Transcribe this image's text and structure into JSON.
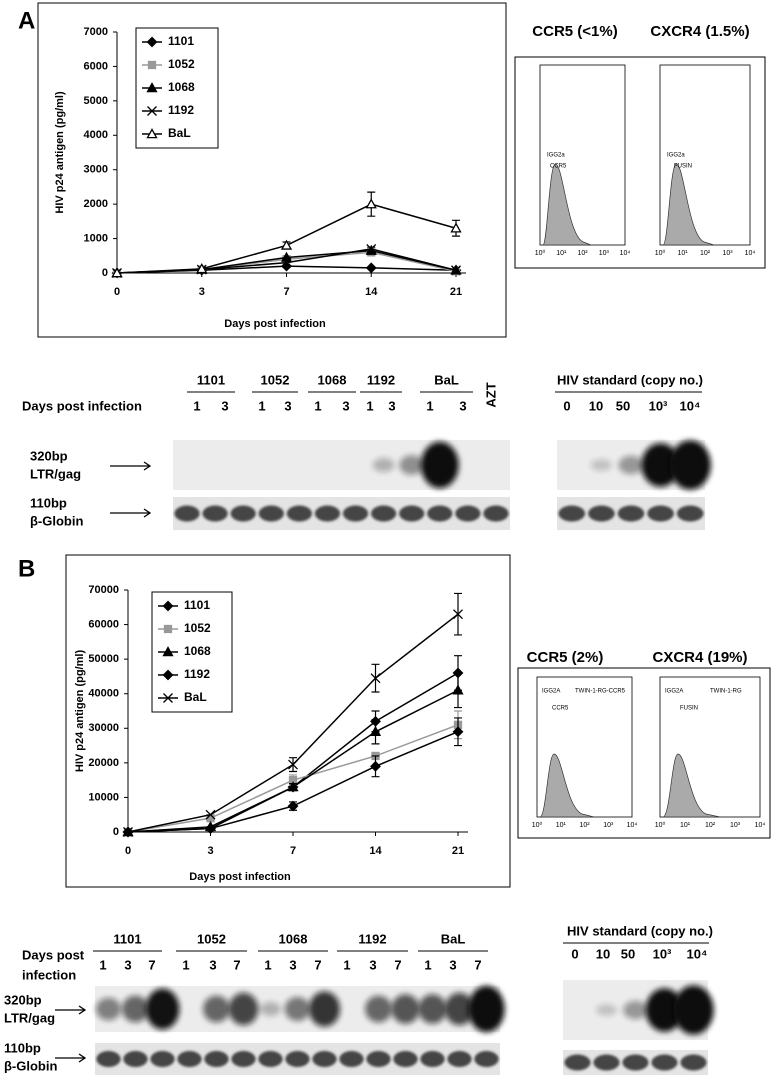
{
  "figure": {
    "panels": [
      {
        "label": "A",
        "flow": {
          "titles": [
            "CCR5 (<1%)",
            "CXCR4 (1.5%)"
          ],
          "plots": [
            {
              "labels": [
                "IGG2a",
                "CCR5"
              ]
            },
            {
              "labels": [
                "IGG2a",
                "FUSIN"
              ]
            }
          ],
          "axis_ticks": [
            "10⁰",
            "10¹",
            "10²",
            "10³",
            "10⁴"
          ]
        },
        "gel": {
          "row_label": [
            "Days post infection"
          ],
          "groups": [
            {
              "name": "1101",
              "days": [
                "1",
                "3"
              ]
            },
            {
              "name": "1052",
              "days": [
                "1",
                "3"
              ]
            },
            {
              "name": "1068",
              "days": [
                "1",
                "3"
              ]
            },
            {
              "name": "1192",
              "days": [
                "1",
                "3"
              ]
            },
            {
              "name": "BaL",
              "days": [
                "1",
                "3"
              ]
            },
            {
              "name": "AZT",
              "days": []
            }
          ],
          "bands": [
            {
              "size": "320bp",
              "name": "LTR/gag"
            },
            {
              "size": "110bp",
              "name": "β-Globin"
            }
          ],
          "standard": {
            "title": "HIV standard (copy no.)",
            "copies": [
              "0",
              "10",
              "50",
              "10³",
              "10⁴"
            ]
          }
        }
      },
      {
        "label": "B",
        "flow": {
          "titles": [
            "CCR5 (2%)",
            "CXCR4 (19%)"
          ],
          "plots": [
            {
              "labels": [
                "IGG2A",
                "TWIN-1-RG-CCR5",
                "CCR5"
              ]
            },
            {
              "labels": [
                "IGG2A",
                "TWIN-1-RG",
                "FUSIN"
              ]
            }
          ],
          "axis_ticks": [
            "10⁰",
            "10¹",
            "10²",
            "10³",
            "10⁴"
          ]
        },
        "gel": {
          "row_label": [
            "Days post",
            "infection"
          ],
          "groups": [
            {
              "name": "1101",
              "days": [
                "1",
                "3",
                "7"
              ]
            },
            {
              "name": "1052",
              "days": [
                "1",
                "3",
                "7"
              ]
            },
            {
              "name": "1068",
              "days": [
                "1",
                "3",
                "7"
              ]
            },
            {
              "name": "1192",
              "days": [
                "1",
                "3",
                "7"
              ]
            },
            {
              "name": "BaL",
              "days": [
                "1",
                "3",
                "7"
              ]
            }
          ],
          "bands": [
            {
              "size": "320bp",
              "name": "LTR/gag"
            },
            {
              "size": "110bp",
              "name": "β-Globin"
            }
          ],
          "standard": {
            "title": "HIV standard (copy no.)",
            "copies": [
              "0",
              "10",
              "50",
              "10³",
              "10⁴"
            ]
          }
        }
      }
    ]
  },
  "chart_data": [
    {
      "type": "line",
      "x_label": "Days post infection",
      "y_label": "HIV p24 antigen (pg/ml)",
      "categories": [
        "0",
        "3",
        "7",
        "14",
        "21"
      ],
      "ylim": [
        0,
        7000
      ],
      "yticks": [
        0,
        1000,
        2000,
        3000,
        4000,
        5000,
        6000,
        7000
      ],
      "series": [
        {
          "name": "1101",
          "color": "#000000",
          "marker": "diamond",
          "values": [
            0,
            80,
            200,
            150,
            80
          ],
          "errors": [
            null,
            null,
            null,
            null,
            null
          ]
        },
        {
          "name": "1052",
          "color": "#999999",
          "marker": "square",
          "values": [
            0,
            100,
            400,
            600,
            50
          ],
          "errors": [
            null,
            null,
            null,
            null,
            null
          ]
        },
        {
          "name": "1068",
          "color": "#000000",
          "marker": "triangle",
          "values": [
            0,
            100,
            450,
            650,
            80
          ],
          "errors": [
            null,
            null,
            null,
            100,
            null
          ]
        },
        {
          "name": "1192",
          "color": "#000000",
          "marker": "x",
          "values": [
            0,
            100,
            300,
            700,
            80
          ],
          "errors": [
            null,
            null,
            null,
            null,
            null
          ]
        },
        {
          "name": "BaL",
          "color": "#000000",
          "marker": "open-triangle",
          "values": [
            0,
            120,
            800,
            2000,
            1300
          ],
          "errors": [
            null,
            null,
            100,
            350,
            230
          ]
        }
      ]
    },
    {
      "type": "line",
      "x_label": "Days post infection",
      "y_label": "HIV p24 antigen (pg/ml)",
      "categories": [
        "0",
        "3",
        "7",
        "14",
        "21"
      ],
      "ylim": [
        0,
        70000
      ],
      "yticks": [
        0,
        10000,
        20000,
        30000,
        40000,
        50000,
        60000,
        70000
      ],
      "series": [
        {
          "name": "1101",
          "color": "#000000",
          "marker": "diamond",
          "values": [
            0,
            1000,
            13000,
            32000,
            46000
          ],
          "errors": [
            null,
            null,
            1000,
            3000,
            5000
          ]
        },
        {
          "name": "1052",
          "color": "#999999",
          "marker": "square",
          "values": [
            0,
            4000,
            15000,
            22000,
            31000
          ],
          "errors": [
            null,
            null,
            1500,
            null,
            4000
          ]
        },
        {
          "name": "1068",
          "color": "#000000",
          "marker": "triangle",
          "values": [
            0,
            1500,
            13000,
            29000,
            41000
          ],
          "errors": [
            null,
            null,
            1000,
            3500,
            5000
          ]
        },
        {
          "name": "1192",
          "color": "#000000",
          "marker": "diamond",
          "values": [
            0,
            1000,
            7500,
            19000,
            29000
          ],
          "errors": [
            null,
            null,
            1200,
            3000,
            4000
          ]
        },
        {
          "name": "BaL",
          "color": "#000000",
          "marker": "x",
          "values": [
            0,
            5000,
            19500,
            44500,
            63000
          ],
          "errors": [
            null,
            null,
            2000,
            4000,
            6000
          ]
        }
      ]
    }
  ]
}
